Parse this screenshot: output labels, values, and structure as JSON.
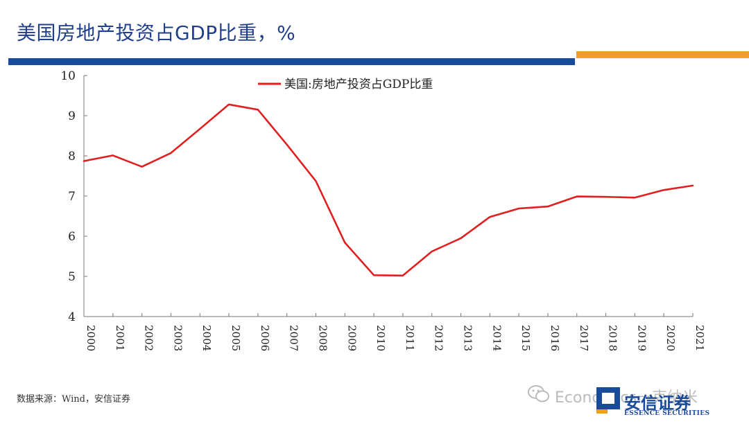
{
  "page": {
    "title": "美国房地产投资占GDP比重，%",
    "source": "数据来源：Wind，安信证券",
    "watermark": "Economics一克纳米",
    "logo_cn": "安信证券",
    "logo_en": "ESSENCE SECURITIES"
  },
  "colors": {
    "title": "#1f3f8a",
    "accent_blue": "#1a4a9a",
    "accent_orange": "#f0a020",
    "series": "#e02020"
  },
  "chart_data": {
    "type": "line",
    "title": "",
    "xlabel": "",
    "ylabel": "",
    "ylim": [
      4,
      10
    ],
    "yticks": [
      "4",
      "5",
      "6",
      "7",
      "8",
      "9",
      "10"
    ],
    "grid": false,
    "legend": "top-center",
    "x": [
      "2000",
      "2001",
      "2002",
      "2003",
      "2004",
      "2005",
      "2006",
      "2007",
      "2008",
      "2009",
      "2010",
      "2011",
      "2012",
      "2013",
      "2014",
      "2015",
      "2016",
      "2017",
      "2018",
      "2019",
      "2020",
      "2021"
    ],
    "series": [
      {
        "name": "美国:房地产投资占GDP比重",
        "values": [
          7.87,
          8.01,
          7.73,
          8.07,
          8.67,
          9.28,
          9.15,
          8.28,
          7.37,
          5.84,
          5.03,
          5.02,
          5.62,
          5.95,
          6.48,
          6.69,
          6.74,
          6.99,
          6.98,
          6.96,
          7.15,
          7.26
        ]
      }
    ]
  }
}
